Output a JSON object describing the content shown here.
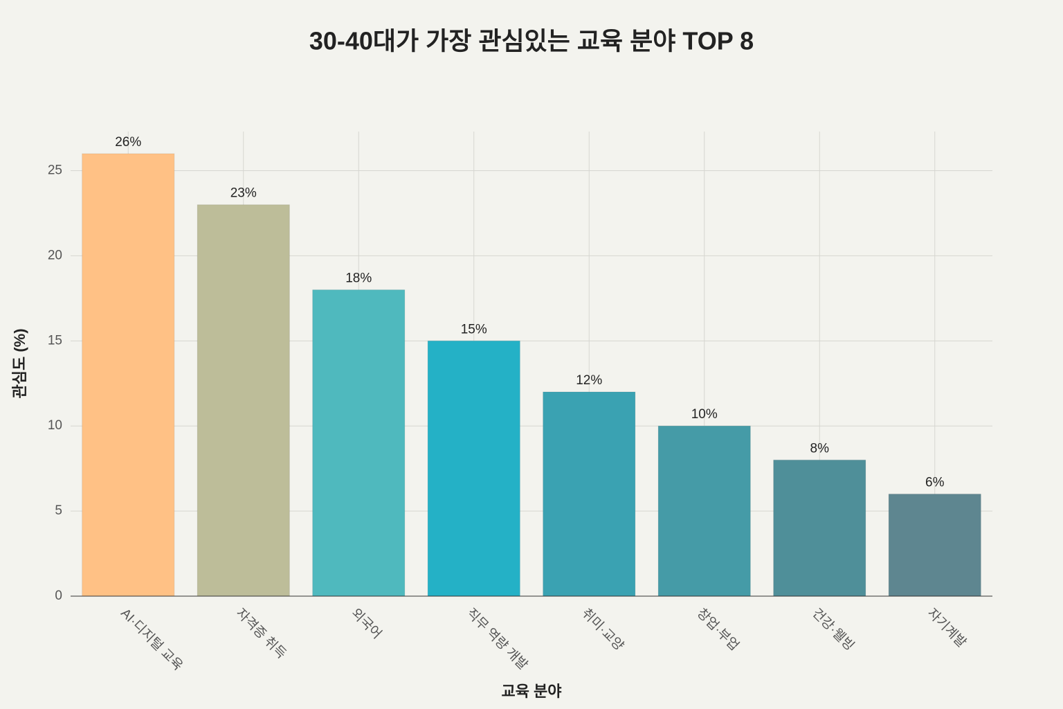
{
  "chart_data": {
    "type": "bar",
    "title": "30-40대가 가장 관심있는 교육 분야 TOP 8",
    "x_label": "교육 분야",
    "y_label": "관심도 (%)",
    "categories": [
      "AI·디지털 교육",
      "자격증 취득",
      "외국어",
      "직무 역량 개발",
      "취미·교양",
      "창업·부업",
      "건강·웰빙",
      "자기계발"
    ],
    "values": [
      26,
      23,
      18,
      15,
      12,
      10,
      8,
      6
    ],
    "value_labels": [
      "26%",
      "23%",
      "18%",
      "15%",
      "12%",
      "10%",
      "8%",
      "6%"
    ],
    "colors": [
      "#FFC185",
      "#BDBD99",
      "#4FB9BE",
      "#24B1C6",
      "#3AA2B2",
      "#459BA7",
      "#4F8F99",
      "#5E8690"
    ],
    "ylim": [
      0,
      27.3
    ],
    "yticks": [
      0,
      5,
      10,
      15,
      20,
      25
    ],
    "grid": true
  }
}
